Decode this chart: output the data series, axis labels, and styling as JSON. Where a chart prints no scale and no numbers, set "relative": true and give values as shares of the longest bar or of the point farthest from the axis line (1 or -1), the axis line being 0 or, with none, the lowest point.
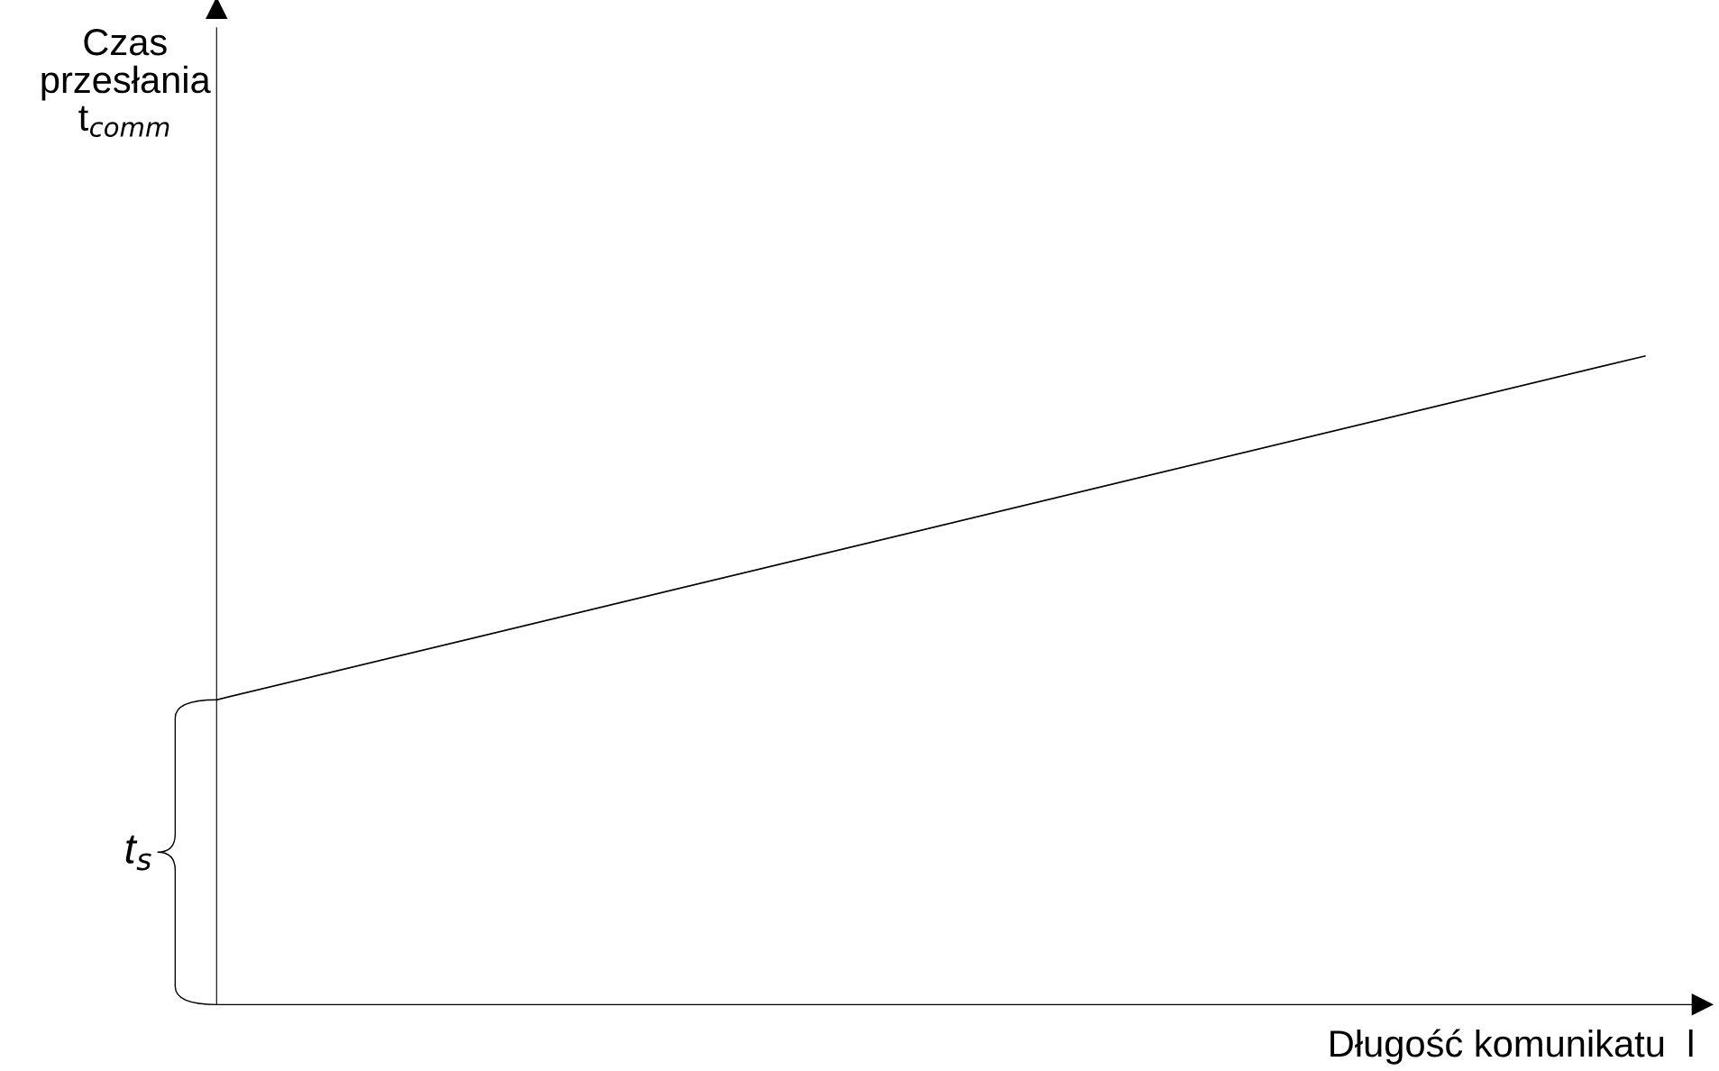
{
  "chart_data": {
    "type": "line",
    "relative": true,
    "xlabel": "Długość komunikatu  l",
    "categories": [
      null,
      null
    ],
    "series": [
      {
        "color": "#000000",
        "values": [
          0.47,
          1
        ]
      }
    ],
    "annotations": [
      "Czas\nprzesłania\nt$_{comm}$",
      "t$_{s}$"
    ],
    "marker": "none",
    "line_style": "solid"
  }
}
